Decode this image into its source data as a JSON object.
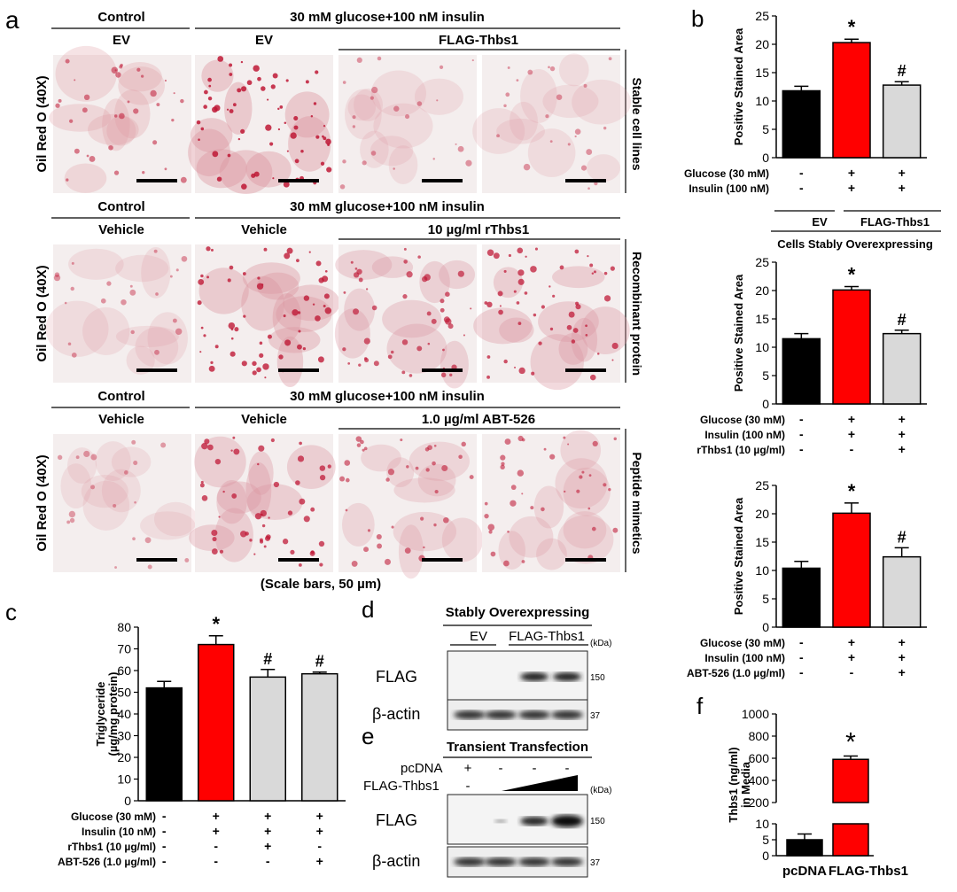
{
  "panels": {
    "a": "a",
    "b": "b",
    "c": "c",
    "d": "d",
    "e": "e",
    "f": "f"
  },
  "panel_a": {
    "rows": [
      {
        "header_left": "Control",
        "header_right": "30 mM glucose+100 nM insulin",
        "sub_labels": [
          "EV",
          "EV",
          "FLAG-Thbs1"
        ],
        "side_label": "Stable cell lines",
        "ylabel": "Oil Red O (40X)"
      },
      {
        "header_left": "Control",
        "header_right": "30 mM glucose+100 nM insulin",
        "sub_labels": [
          "Vehicle",
          "Vehicle",
          "10 µg/ml rThbs1"
        ],
        "side_label": "Recombinant protein",
        "ylabel": "Oil Red O (40X)"
      },
      {
        "header_left": "Control",
        "header_right": "30 mM glucose+100 nM insulin",
        "sub_labels": [
          "Vehicle",
          "Vehicle",
          "1.0 µg/ml ABT-526"
        ],
        "side_label": "Peptide mimetics",
        "ylabel": "Oil Red O (40X)"
      }
    ],
    "scale_note": "(Scale bars, 50 µm)"
  },
  "chart_data": [
    {
      "id": "b1",
      "type": "bar",
      "ylabel": "Positive Stained Area",
      "ylim": [
        0,
        25
      ],
      "yticks": [
        0,
        5,
        10,
        15,
        20,
        25
      ],
      "values": [
        11.8,
        20.3,
        12.8
      ],
      "errors": [
        0.8,
        0.6,
        0.6
      ],
      "colors": [
        "#000000",
        "#ff0000",
        "#d9d9d9"
      ],
      "markers": [
        "",
        "*",
        "#"
      ],
      "condition_rows": [
        {
          "label": "Glucose (30 mM)",
          "signs": [
            "-",
            "+",
            "+"
          ]
        },
        {
          "label": "Insulin (100 nM)",
          "signs": [
            "-",
            "+",
            "+"
          ]
        }
      ],
      "groups": [
        "EV",
        "FLAG-Thbs1"
      ],
      "group_caption": "Cells Stably Overexpressing"
    },
    {
      "id": "b2",
      "type": "bar",
      "ylabel": "Positive Stained Area",
      "ylim": [
        0,
        25
      ],
      "yticks": [
        0,
        5,
        10,
        15,
        20,
        25
      ],
      "values": [
        11.5,
        20.1,
        12.4
      ],
      "errors": [
        0.9,
        0.6,
        0.6
      ],
      "colors": [
        "#000000",
        "#ff0000",
        "#d9d9d9"
      ],
      "markers": [
        "",
        "*",
        "#"
      ],
      "condition_rows": [
        {
          "label": "Glucose (30 mM)",
          "signs": [
            "-",
            "+",
            "+"
          ]
        },
        {
          "label": "Insulin (100 nM)",
          "signs": [
            "-",
            "+",
            "+"
          ]
        },
        {
          "label": "rThbs1 (10 µg/ml)",
          "signs": [
            "-",
            "-",
            "+"
          ]
        }
      ]
    },
    {
      "id": "b3",
      "type": "bar",
      "ylabel": "Positive Stained Area",
      "ylim": [
        0,
        25
      ],
      "yticks": [
        0,
        5,
        10,
        15,
        20,
        25
      ],
      "values": [
        10.4,
        20.1,
        12.4
      ],
      "errors": [
        1.2,
        1.8,
        1.6
      ],
      "colors": [
        "#000000",
        "#ff0000",
        "#d9d9d9"
      ],
      "markers": [
        "",
        "*",
        "#"
      ],
      "condition_rows": [
        {
          "label": "Glucose (30 mM)",
          "signs": [
            "-",
            "+",
            "+"
          ]
        },
        {
          "label": "Insulin (100 nM)",
          "signs": [
            "-",
            "+",
            "+"
          ]
        },
        {
          "label": "ABT-526 (1.0 µg/ml)",
          "signs": [
            "-",
            "-",
            "+"
          ]
        }
      ]
    },
    {
      "id": "c",
      "type": "bar",
      "ylabel": "Triglyceride",
      "ylabel2": "(µg/mg protein)",
      "ylim": [
        0,
        80
      ],
      "yticks": [
        0,
        10,
        20,
        30,
        40,
        50,
        60,
        70,
        80
      ],
      "values": [
        52,
        72,
        57,
        58.5
      ],
      "errors": [
        3,
        4,
        3.5,
        0.8
      ],
      "colors": [
        "#000000",
        "#ff0000",
        "#d9d9d9",
        "#d9d9d9"
      ],
      "markers": [
        "",
        "*",
        "#",
        "#"
      ],
      "condition_rows": [
        {
          "label": "Glucose (30 mM)",
          "signs": [
            "-",
            "+",
            "+",
            "+"
          ]
        },
        {
          "label": "Insulin (10 nM)",
          "signs": [
            "-",
            "+",
            "+",
            "+"
          ]
        },
        {
          "label": "rThbs1 (10 µg/ml)",
          "signs": [
            "-",
            "-",
            "+",
            "-"
          ]
        },
        {
          "label": "ABT-526 (1.0 µg/ml)",
          "signs": [
            "-",
            "-",
            "-",
            "+"
          ]
        }
      ]
    },
    {
      "id": "f",
      "type": "bar",
      "ylabel": "Thbs1 (ng/ml)",
      "ylabel2": "in Media",
      "upper_ylim": [
        200,
        1000
      ],
      "upper_ticks": [
        200,
        400,
        600,
        800,
        1000
      ],
      "lower_ylim": [
        0,
        10
      ],
      "lower_ticks": [
        0,
        5,
        10
      ],
      "categories": [
        "pcDNA",
        "FLAG-Thbs1"
      ],
      "values": [
        5,
        590
      ],
      "errors": [
        1.8,
        30
      ],
      "colors": [
        "#000000",
        "#ff0000"
      ],
      "markers": [
        "",
        "*"
      ]
    }
  ],
  "panel_d": {
    "title": "Stably Overexpressing",
    "lanes": [
      "EV",
      "FLAG-Thbs1"
    ],
    "kda_label": "(kDa)",
    "rows": [
      {
        "label": "FLAG",
        "marker": "150"
      },
      {
        "label": "β-actin",
        "marker": "37"
      }
    ]
  },
  "panel_e": {
    "title": "Transient Transfection",
    "conditions": [
      {
        "label": "pcDNA",
        "signs": [
          "+",
          "-",
          "-",
          "-"
        ]
      },
      {
        "label": "FLAG-Thbs1",
        "signs": [
          "-",
          "",
          "",
          ""
        ]
      }
    ],
    "kda_label": "(kDa)",
    "rows": [
      {
        "label": "FLAG",
        "marker": "150"
      },
      {
        "label": "β-actin",
        "marker": "37"
      }
    ]
  }
}
